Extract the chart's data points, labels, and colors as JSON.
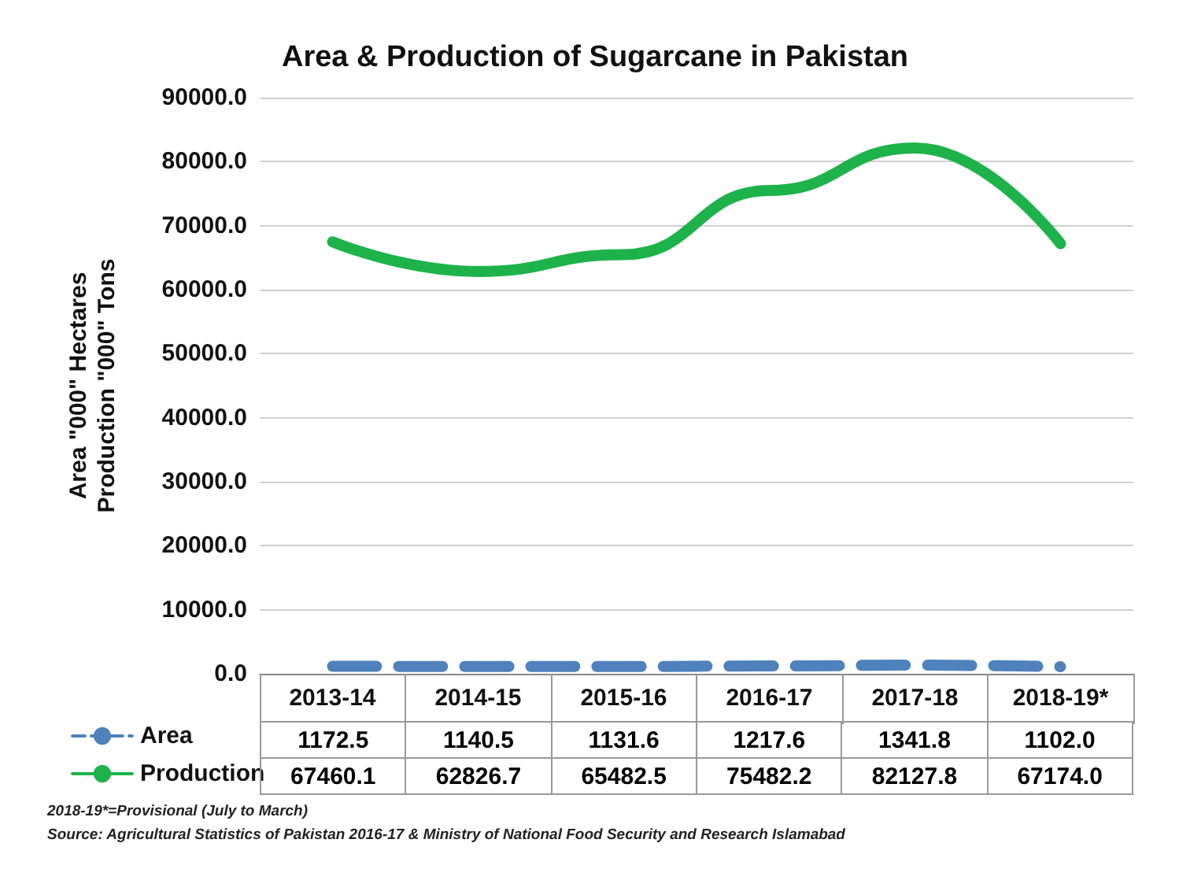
{
  "chart_data": {
    "type": "line",
    "title": "Area & Production of Sugarcane in Pakistan",
    "ylabel": "Area \"000\" Hectares\nProduction \"000\" Tons",
    "categories": [
      "2013-14",
      "2014-15",
      "2015-16",
      "2016-17",
      "2017-18",
      "2018-19*"
    ],
    "series": [
      {
        "name": "Area",
        "color": "#4f81bd",
        "line_style": "dashed",
        "values": [
          1172.5,
          1140.5,
          1131.6,
          1217.6,
          1341.8,
          1102.0
        ],
        "value_labels": [
          "1172.5",
          "1140.5",
          "1131.6",
          "1217.6",
          "1341.8",
          "1102.0"
        ]
      },
      {
        "name": "Production",
        "color": "#1db34a",
        "line_style": "solid",
        "values": [
          67460.1,
          62826.7,
          65482.5,
          75482.2,
          82127.8,
          67174.0
        ],
        "value_labels": [
          "67460.1",
          "62826.7",
          "65482.5",
          "75482.2",
          "82127.8",
          "67174.0"
        ]
      }
    ],
    "ylim": [
      0,
      90000
    ],
    "yticks": [
      {
        "value": 0,
        "label": "0.0"
      },
      {
        "value": 10000,
        "label": "10000.0"
      },
      {
        "value": 20000,
        "label": "20000.0"
      },
      {
        "value": 30000,
        "label": "30000.0"
      },
      {
        "value": 40000,
        "label": "40000.0"
      },
      {
        "value": 50000,
        "label": "50000.0"
      },
      {
        "value": 60000,
        "label": "60000.0"
      },
      {
        "value": 70000,
        "label": "70000.0"
      },
      {
        "value": 80000,
        "label": "80000.0"
      },
      {
        "value": 90000,
        "label": "90000.0"
      }
    ],
    "grid": "y",
    "legend": "bottom left",
    "marker": "none",
    "annotations": [
      "2018-19*=Provisional (July to March)",
      "Source: Agricultural Statistics of Pakistan 2016-17 & Ministry of National Food Security and Research Islamabad"
    ]
  }
}
